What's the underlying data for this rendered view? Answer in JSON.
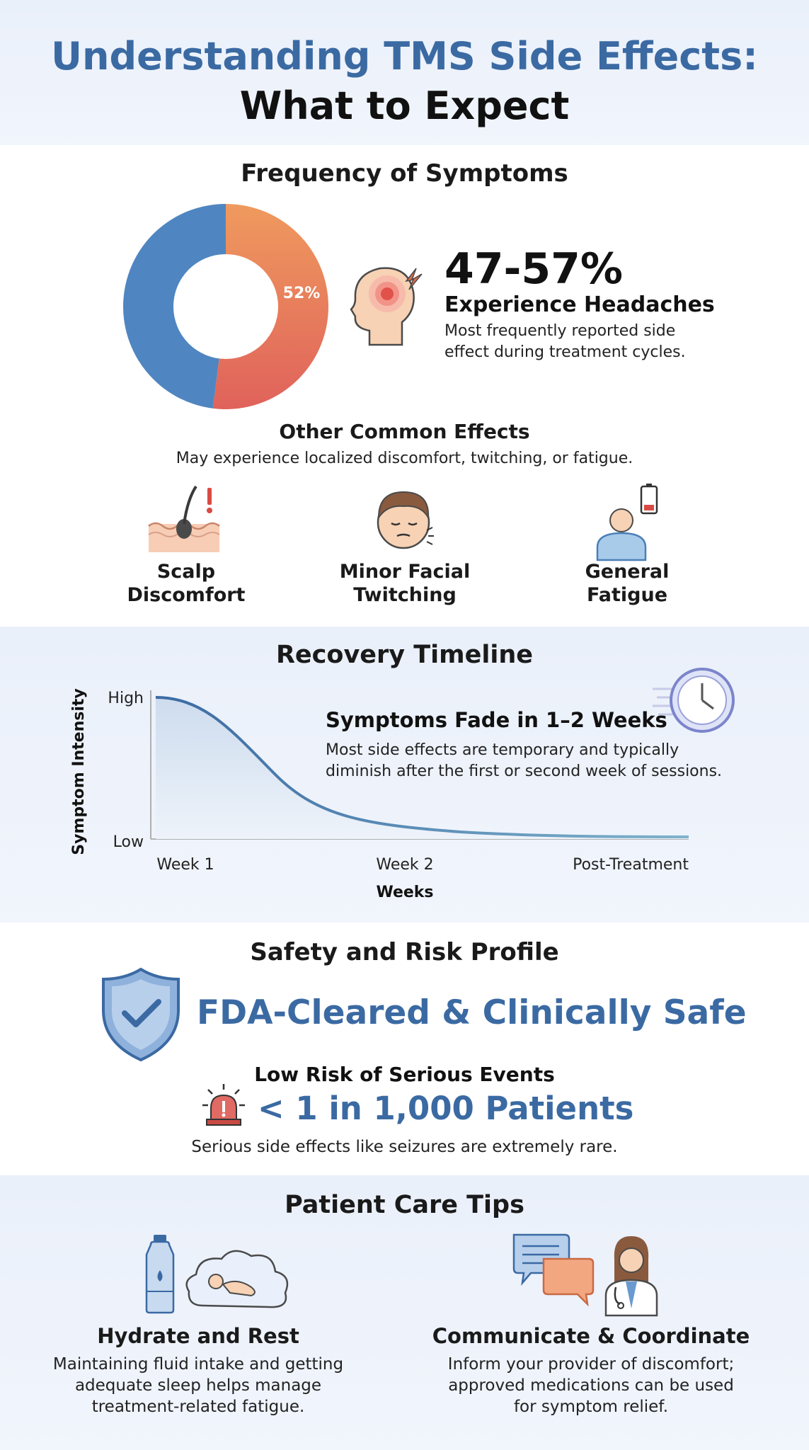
{
  "header": {
    "title_line1": "Understanding TMS Side Effects:",
    "title_line2": "What to Expect"
  },
  "frequency": {
    "heading": "Frequency of Symptoms",
    "donut_label": "52%",
    "donut_fraction": 0.52,
    "stat": "47-57%",
    "stat_label": "Experience Headaches",
    "stat_desc_line1": "Most frequently reported side",
    "stat_desc_line2": "effect during treatment cycles.",
    "colors": {
      "donut_blue": "#4f86c1",
      "donut_orange": "#ef9560",
      "donut_red": "#e0685d"
    }
  },
  "other_effects": {
    "heading": "Other Common Effects",
    "subheading": "May experience localized discomfort, twitching, or fatigue.",
    "items": [
      {
        "line1": "Scalp",
        "line2": "Discomfort",
        "icon": "scalp-discomfort-icon"
      },
      {
        "line1": "Minor Facial",
        "line2": "Twitching",
        "icon": "facial-twitch-icon"
      },
      {
        "line1": "General",
        "line2": "Fatigue",
        "icon": "fatigue-icon"
      }
    ]
  },
  "recovery": {
    "heading": "Recovery Timeline",
    "callout_title": "Symptoms Fade in 1–2 Weeks",
    "callout_line1": "Most side effects are temporary and typically",
    "callout_line2": "diminish after the first or second week of sessions.",
    "chart_data": {
      "type": "area",
      "x": [
        "Week 1",
        "Week 2",
        "Post-Treatment"
      ],
      "y_ticks": [
        "High",
        "Low"
      ],
      "ylabel": "Symptom Intensity",
      "xlabel": "Weeks",
      "grid": false
    }
  },
  "safety": {
    "heading": "Safety and Risk Profile",
    "banner": "FDA-Cleared & Clinically Safe",
    "risk_heading": "Low Risk of Serious Events",
    "risk_stat": "< 1 in 1,000 Patients",
    "risk_desc": "Serious side effects like seizures are extremely rare."
  },
  "tips": {
    "heading": "Patient Care Tips",
    "items": [
      {
        "title": "Hydrate and Rest",
        "line1": "Maintaining fluid intake and getting",
        "line2": "adequate sleep helps manage",
        "line3": "treatment-related fatigue."
      },
      {
        "title": "Communicate & Coordinate",
        "line1": "Inform your provider of discomfort;",
        "line2": "approved medications can be used",
        "line3": "for symptom relief."
      }
    ]
  }
}
